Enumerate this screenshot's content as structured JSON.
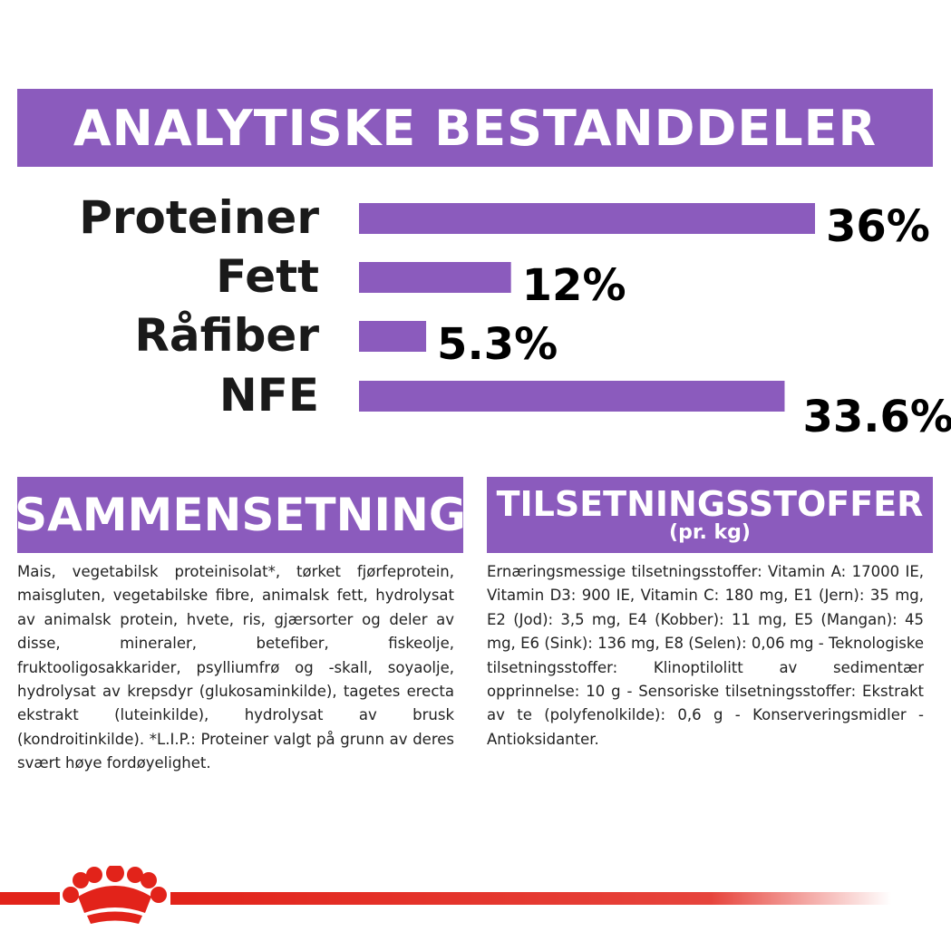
{
  "title": "ANALYTISKE BESTANDDELER",
  "chart_data": {
    "type": "bar",
    "orientation": "horizontal",
    "categories": [
      "Proteiner",
      "Fett",
      "Råfiber",
      "NFE"
    ],
    "values": [
      36,
      12,
      5.3,
      33.6
    ],
    "value_labels": [
      "36%",
      "12%",
      "5.3%",
      "33.6%"
    ],
    "xlim": [
      0,
      36
    ],
    "grid": false,
    "bar_color": "#8b5bbd"
  },
  "composition": {
    "heading": "SAMMENSETNING",
    "text": "Mais, vegetabilsk proteinisolat*, tørket fjørfeprotein, maisgluten, vegetabilske fibre, animalsk fett, hydrolysat av animalsk protein, hvete, ris, gjærsorter og deler av disse, mineraler, betefiber, fiskeolje, fruktooligosakkarider, psylliumfrø og -skall, soyaolje, hydrolysat av krepsdyr (glukosaminkilde), tagetes erecta ekstrakt (luteinkilde), hydrolysat av brusk (kondroitinkilde). *L.I.P.: Proteiner valgt på grunn av deres svært høye fordøyelighet."
  },
  "additives": {
    "heading": "TILSETNINGSSTOFFER",
    "subheading": "(pr. kg)",
    "text": "Ernæringsmessige tilsetningsstoffer: Vitamin A: 17000 IE, Vitamin D3: 900 IE, Vitamin C: 180 mg, E1 (Jern): 35 mg, E2 (Jod): 3,5 mg, E4 (Kobber): 11 mg, E5 (Mangan): 45 mg, E6 (Sink): 136 mg, E8 (Selen): 0,06 mg - Teknologiske tilsetningsstoffer: Klinoptilolitt av sedimentær opprinnelse: 10 g - Sensoriske tilsetningsstoffer: Ekstrakt av te (polyfenolkilde): 0,6 g - Konserveringsmidler - Antioksidanter."
  },
  "colors": {
    "accent": "#8b5bbd",
    "brand_red": "#e2231a"
  },
  "footer": {
    "logo_icon": "crown-icon"
  }
}
